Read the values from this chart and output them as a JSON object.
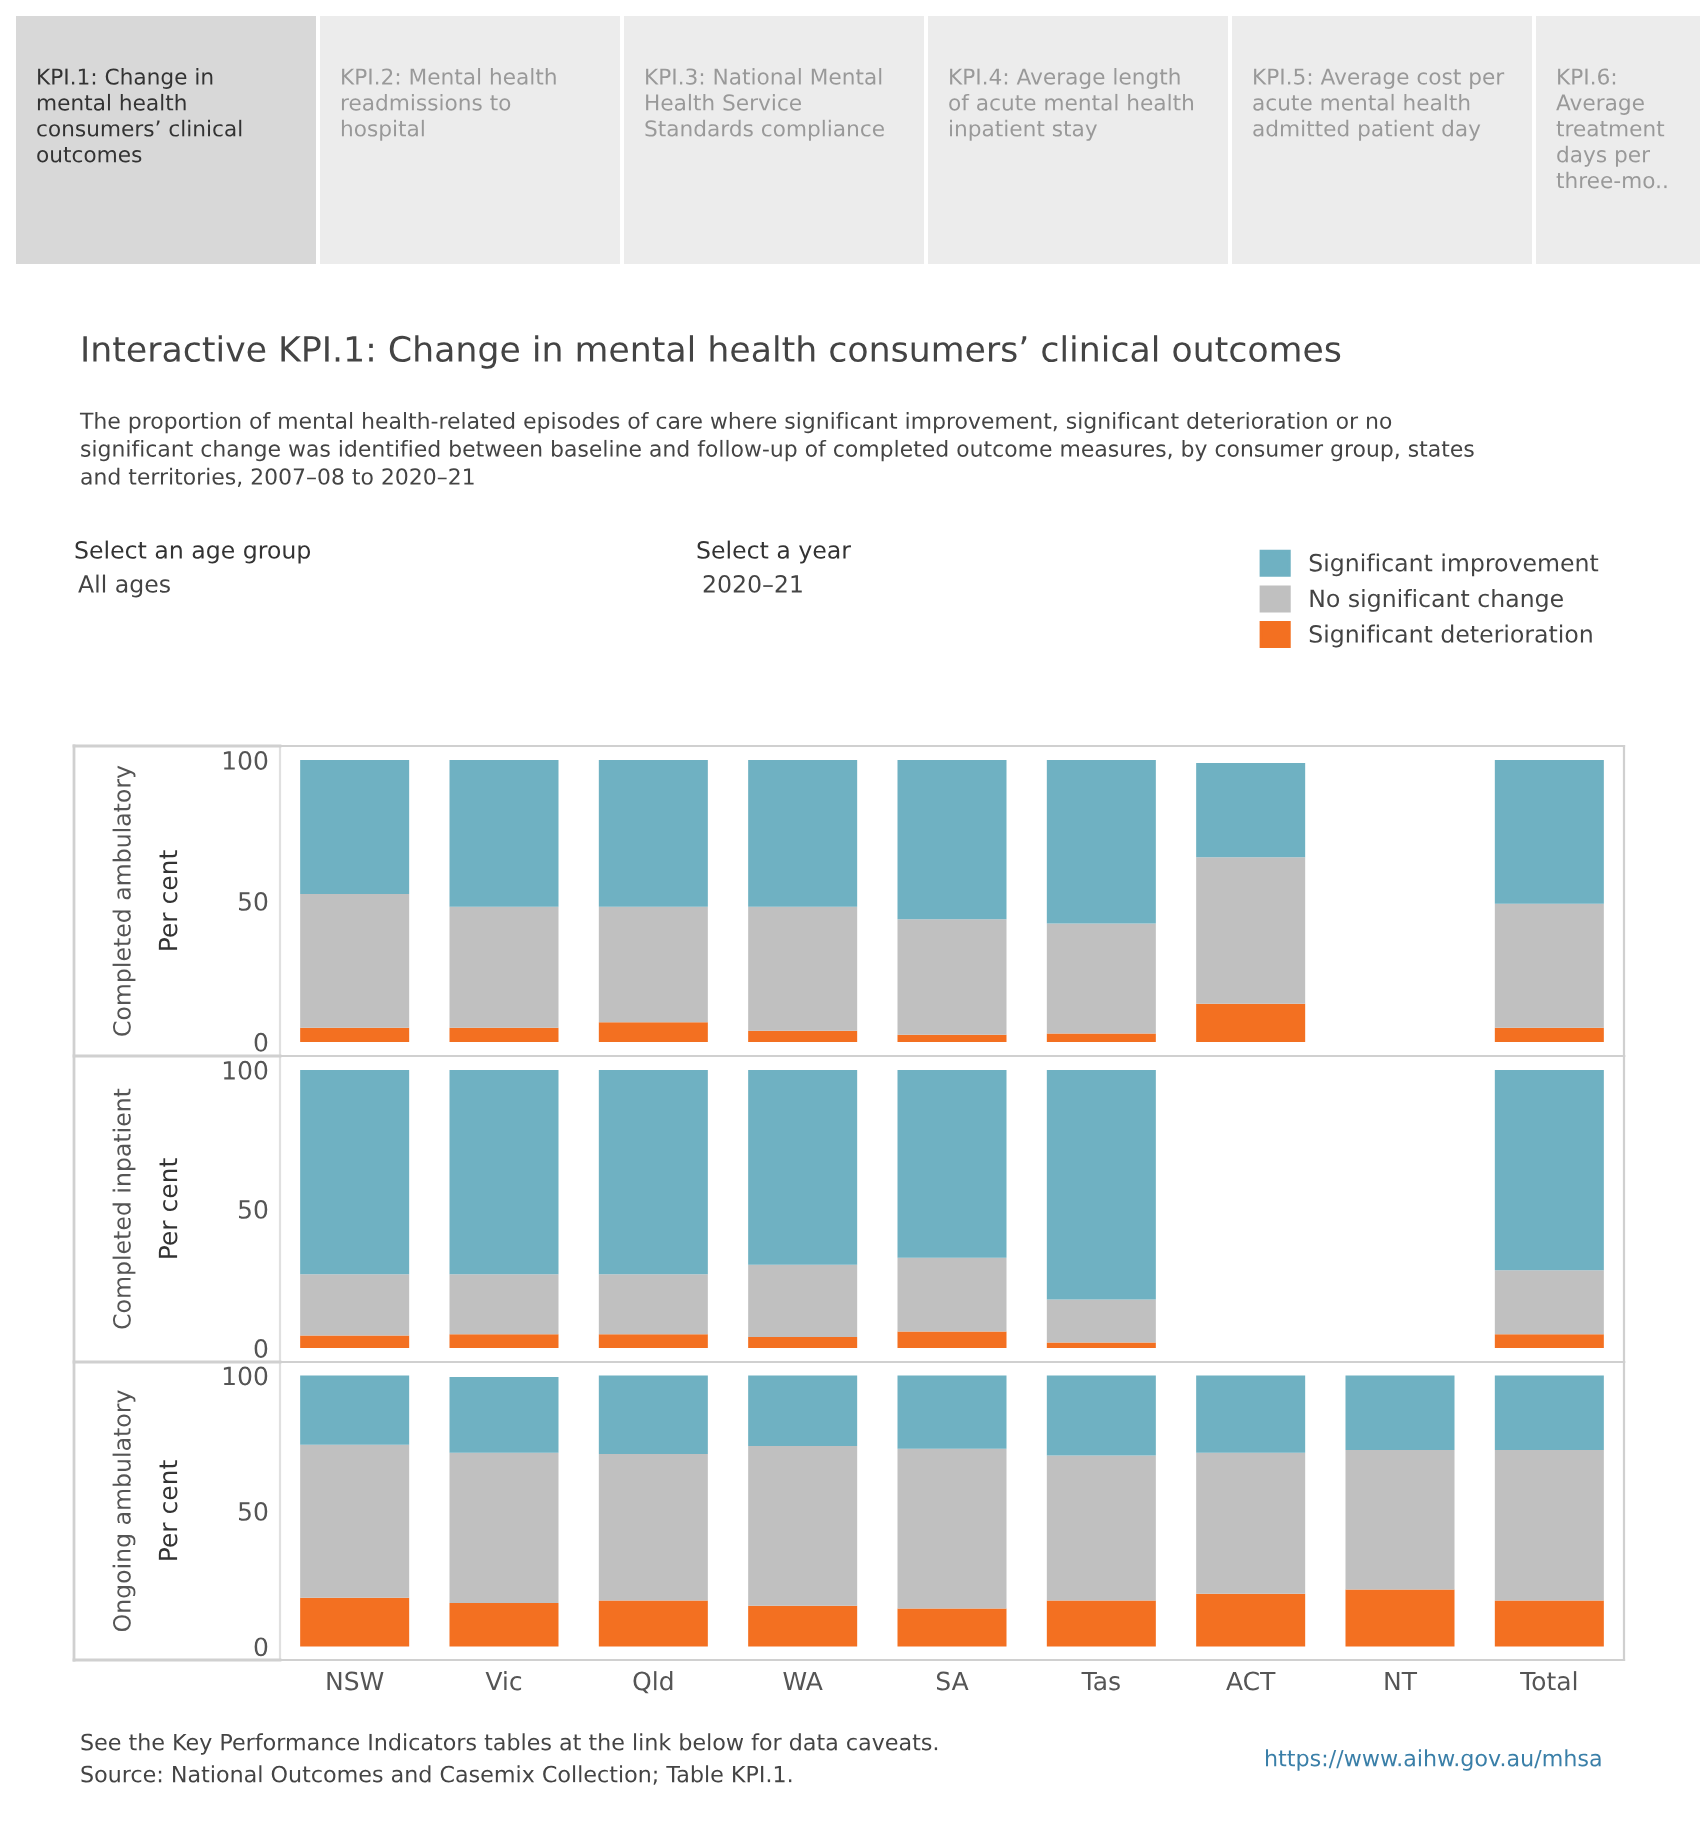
{
  "chart_data": [
    {
      "type": "bar",
      "stacked": true,
      "title": "Interactive KPI.1: Change in mental health consumers’ clinical outcomes",
      "subtitle": "The proportion of mental health-related episodes of care where significant improvement, significant deterioration or no\nsignificant change was identified between baseline and follow-up of completed outcome measures, by consumer group, states\nand territories, 2007–08 to 2020–21",
      "annotations": [
        "Completed ambulatory",
        "KPI.1: Change in\nmental health\nconsumers’ clinical\noutcomes",
        "KPI.2: Mental health\nreadmissions to\nhospital",
        "KPI.3: National Mental\nHealth Service\nStandards compliance",
        "KPI.4: Average length\nof acute mental health\ninpatient stay",
        "KPI.5: Average cost per\nacute mental health\nadmitted patient day",
        "KPI.6:\nAverage\ntreatment\ndays per\nthree-mo..",
        "Select an age group",
        "All ages",
        "Select a year",
        "2020–21"
      ],
      "ylabel": "Per cent",
      "ylim": [
        -5,
        105
      ],
      "yticks": [
        0,
        50,
        100
      ],
      "tick_labels": "y",
      "legend": "top right",
      "grid": false,
      "categories": [
        null,
        null,
        null,
        null,
        null,
        null,
        null,
        null,
        null
      ],
      "series": [
        {
          "name": "Significant deterioration",
          "color": "#f37021",
          "values": [
            5,
            5,
            7,
            4,
            2.5,
            3,
            13.5,
            null,
            5
          ]
        },
        {
          "name": "No significant change",
          "color": "#c0c0c0",
          "values": [
            47.5,
            43,
            41,
            44,
            41,
            39,
            52,
            null,
            44
          ]
        },
        {
          "name": "Significant improvement",
          "color": "#6fb1c2",
          "values": [
            47.5,
            52,
            52,
            52,
            56.5,
            58,
            33.5,
            null,
            51
          ]
        }
      ]
    },
    {
      "type": "bar",
      "stacked": true,
      "annotations": [
        "Completed inpatient"
      ],
      "ylabel": "Per cent",
      "ylim": [
        -5,
        105
      ],
      "yticks": [
        0,
        50,
        100
      ],
      "tick_labels": "y",
      "grid": false,
      "categories": [
        null,
        null,
        null,
        null,
        null,
        null,
        null,
        null,
        null
      ],
      "series": [
        {
          "color": "#f37021",
          "values": [
            4.5,
            5,
            5,
            4,
            6,
            2,
            null,
            null,
            5
          ]
        },
        {
          "color": "#c0c0c0",
          "values": [
            22,
            21.5,
            21.5,
            26,
            26.5,
            15.5,
            null,
            null,
            23
          ]
        },
        {
          "color": "#6fb1c2",
          "values": [
            73.5,
            73.5,
            73.5,
            70,
            67.5,
            82.5,
            null,
            null,
            72
          ]
        }
      ]
    },
    {
      "type": "bar",
      "stacked": true,
      "annotations": [
        "Ongoing ambulatory",
        "See the Key Performance Indicators tables at the link below for data caveats.",
        "Source: National Outcomes and Casemix Collection; Table KPI.1.",
        "https://www.aihw.gov.au/mhsa"
      ],
      "ylabel": "Per cent",
      "ylim": [
        -5,
        105
      ],
      "yticks": [
        0,
        50,
        100
      ],
      "grid": false,
      "categories": [
        "NSW",
        "Vic",
        "Qld",
        "WA",
        "SA",
        "Tas",
        "ACT",
        "NT",
        "Total"
      ],
      "series": [
        {
          "color": "#f37021",
          "values": [
            18,
            16,
            17,
            15,
            14,
            17,
            19.5,
            21,
            17
          ]
        },
        {
          "color": "#c0c0c0",
          "values": [
            56.5,
            55.5,
            54,
            59,
            59,
            53.5,
            52,
            51.5,
            55.5
          ]
        },
        {
          "color": "#6fb1c2",
          "values": [
            25.5,
            28,
            29,
            26,
            27,
            29.5,
            28.5,
            27.5,
            27.5
          ]
        }
      ]
    }
  ]
}
